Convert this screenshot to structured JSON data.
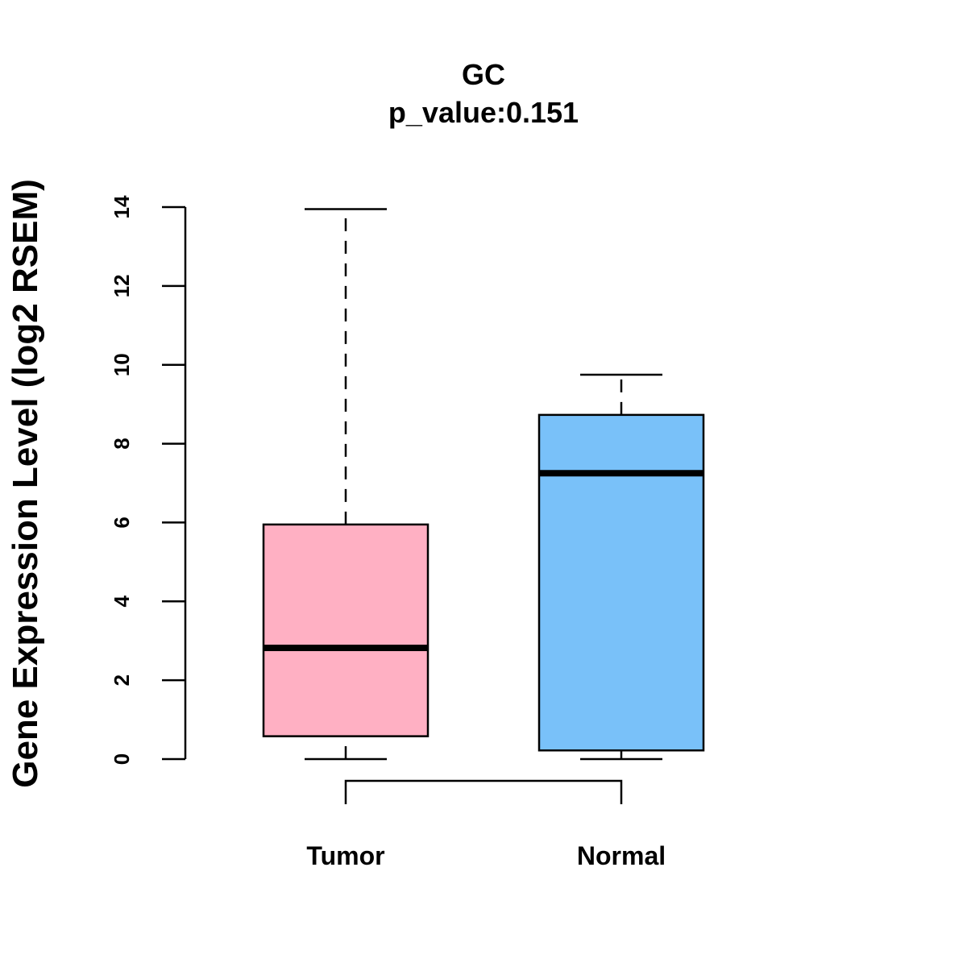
{
  "chart_data": {
    "type": "box",
    "title": "GC",
    "subtitle": "p_value:0.151",
    "xlabel": "",
    "ylabel": "Gene Expression Level (log2 RSEM)",
    "ylim": [
      0,
      14
    ],
    "yticks": [
      0,
      2,
      4,
      6,
      8,
      10,
      12,
      14
    ],
    "ytick_labels": [
      "0",
      "2",
      "4",
      "6",
      "8",
      "10",
      "12",
      "14"
    ],
    "grid": false,
    "categories": [
      "Tumor",
      "Normal"
    ],
    "series": [
      {
        "name": "Tumor",
        "min": 0.0,
        "q1": 0.58,
        "median": 2.82,
        "q3": 5.95,
        "max": 13.95,
        "color": "#FFB0C3"
      },
      {
        "name": "Normal",
        "min": 0.0,
        "q1": 0.22,
        "median": 7.25,
        "q3": 8.73,
        "max": 9.75,
        "color": "#79C1F9"
      }
    ],
    "comparison_bracket": {
      "between": [
        "Tumor",
        "Normal"
      ],
      "label": ""
    }
  }
}
